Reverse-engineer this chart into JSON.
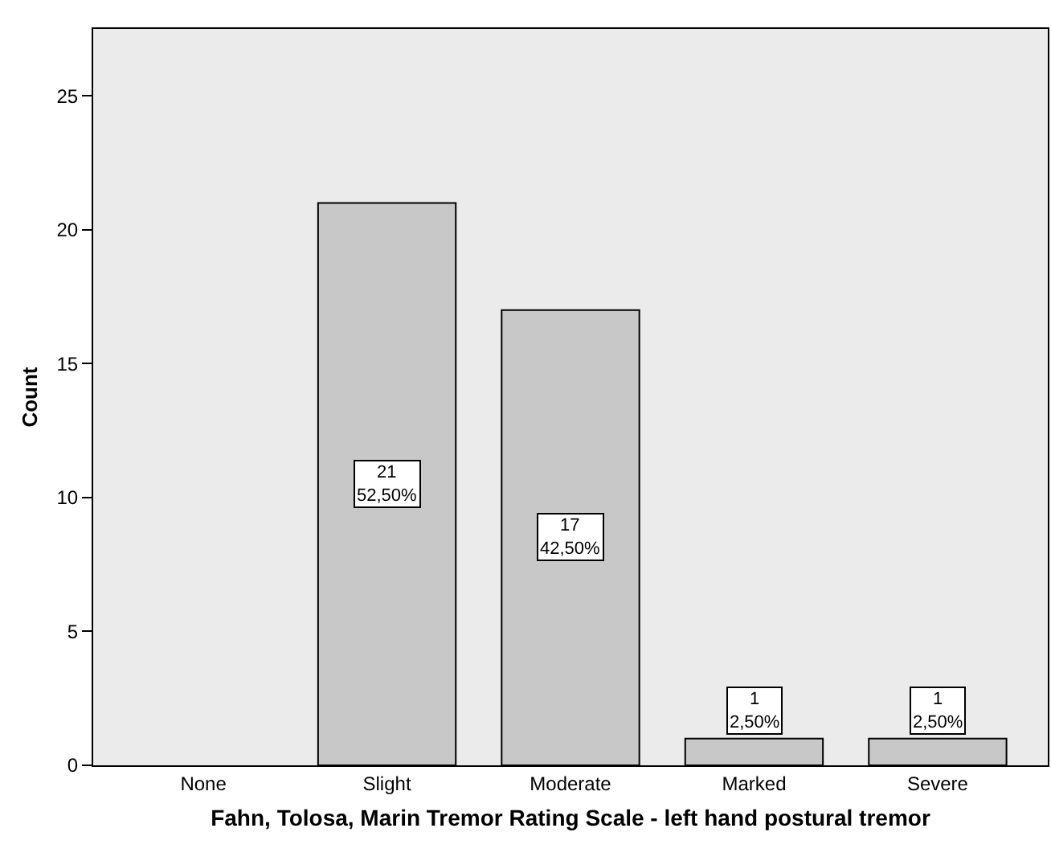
{
  "chart_data": {
    "type": "bar",
    "xlabel": "Fahn, Tolosa, Marin Tremor Rating Scale - left hand postural tremor",
    "ylabel": "Count",
    "categories": [
      "None",
      "Slight",
      "Moderate",
      "Marked",
      "Severe"
    ],
    "values": [
      0,
      21,
      17,
      1,
      1
    ],
    "value_labels": [
      null,
      "21\n52,50%",
      "17\n42,50%",
      "1\n2,50%",
      "1\n2,50%"
    ],
    "color": "#c8c8c8",
    "ylim": [
      0,
      27.5
    ],
    "yticks": [
      0,
      5,
      10,
      15,
      20,
      25
    ],
    "grid": false
  }
}
